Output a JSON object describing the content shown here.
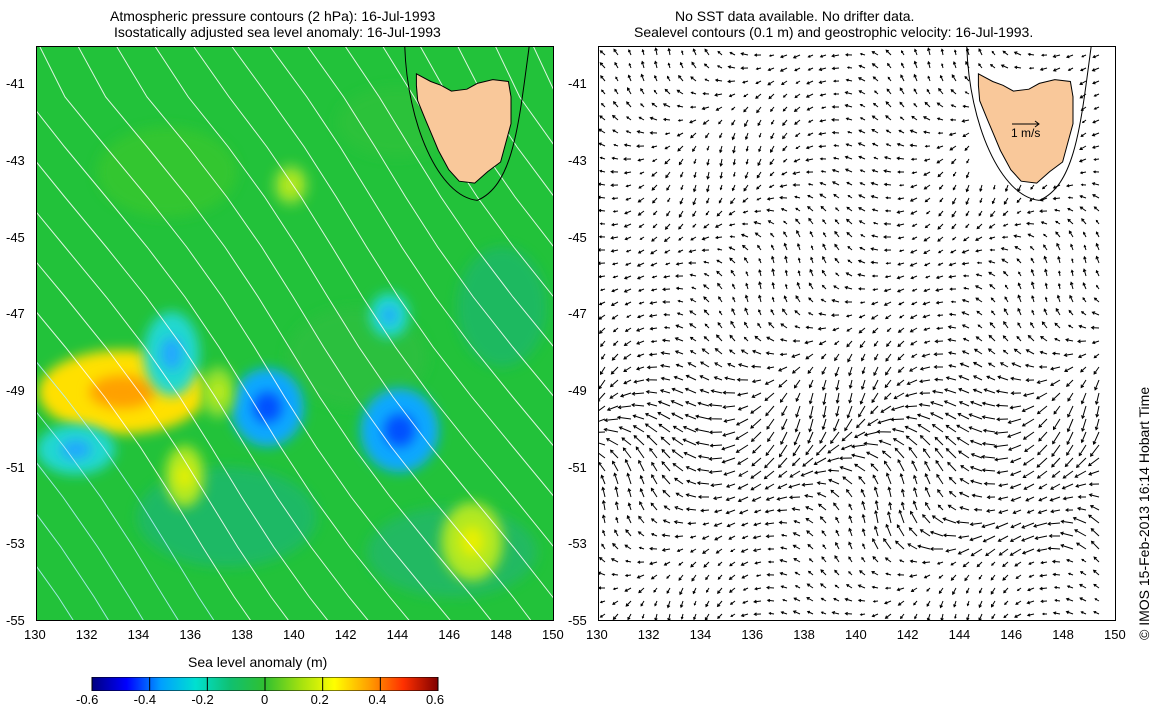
{
  "left_title": {
    "line1": "Atmospheric pressure contours (2 hPa): 16-Jul-1993",
    "line2": "Isostatically adjusted sea level anomaly: 16-Jul-1993"
  },
  "right_title": {
    "line1": "No SST data available.  No drifter data.",
    "line2": "Sealevel contours (0.1 m) and geostrophic velocity: 16-Jul-1993."
  },
  "x_ticks": [
    "130",
    "132",
    "134",
    "136",
    "138",
    "140",
    "142",
    "144",
    "146",
    "148",
    "150"
  ],
  "y_ticks": [
    "-41",
    "-43",
    "-45",
    "-47",
    "-49",
    "-51",
    "-53",
    "-55"
  ],
  "scale_label": "1 m/s",
  "colorbar": {
    "label": "Sea level anomaly (m)",
    "ticks": [
      "-0.6",
      "-0.4",
      "-0.2",
      "0",
      "0.2",
      "0.4",
      "0.6"
    ],
    "colors": [
      "#000080",
      "#0000ff",
      "#00a0ff",
      "#00e0d0",
      "#10c070",
      "#30c030",
      "#a0e010",
      "#ffff00",
      "#ffa000",
      "#ff3000",
      "#800000"
    ]
  },
  "credit": "© IMOS 15-Feb-2013 16:14 Hobart Time",
  "colors": {
    "land": "#f9c89a",
    "ocean_base": "#22c23a",
    "contour": "#ffffff"
  },
  "chart_data": {
    "type": "map",
    "x_axis": "longitude",
    "xlim": [
      130,
      150
    ],
    "y_axis": "latitude",
    "ylim": [
      -55,
      -40
    ],
    "anomaly_features": [
      {
        "lon": 133.3,
        "lat": -49.0,
        "value": 0.35
      },
      {
        "lon": 131.5,
        "lat": -50.5,
        "value": -0.2
      },
      {
        "lon": 135.2,
        "lat": -48.0,
        "value": -0.2
      },
      {
        "lon": 138.9,
        "lat": -49.4,
        "value": -0.3
      },
      {
        "lon": 144.0,
        "lat": -50.0,
        "value": -0.3
      },
      {
        "lon": 146.8,
        "lat": -52.9,
        "value": 0.2
      },
      {
        "lon": 135.7,
        "lat": -51.2,
        "value": 0.2
      },
      {
        "lon": 137.0,
        "lat": -49.0,
        "value": 0.15
      },
      {
        "lon": 139.8,
        "lat": -43.6,
        "value": 0.15
      },
      {
        "lon": 143.6,
        "lat": -47.0,
        "value": -0.2
      }
    ]
  }
}
